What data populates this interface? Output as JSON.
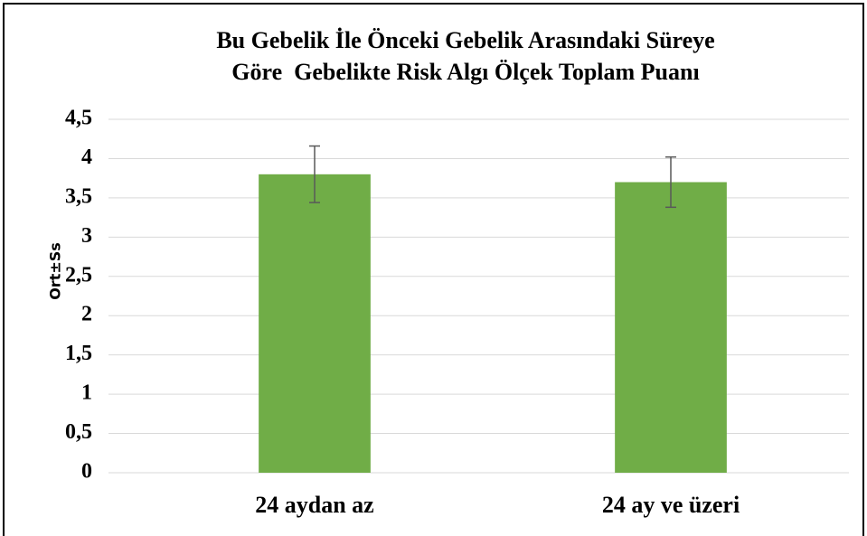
{
  "chart_data": {
    "type": "bar",
    "title": [
      "Bu Gebelik İle Önceki Gebelik Arasındaki Süreye",
      "Göre  Gebelikte Risk Algı Ölçek Toplam Puanı"
    ],
    "y_label": "Ort±Ss",
    "categories": [
      "24 aydan az",
      "24 ay ve üzeri"
    ],
    "values": [
      3.8,
      3.7
    ],
    "errors": [
      0.36,
      0.32
    ],
    "color": "#70ad47",
    "error_color": "#595959",
    "ylim": [
      0,
      4.5
    ],
    "yticks": [
      0,
      {
        "value": 0.5,
        "label": "0,5"
      },
      1,
      {
        "value": 1.5,
        "label": "1,5"
      },
      2,
      {
        "value": 2.5,
        "label": "2,5"
      },
      3,
      {
        "value": 3.5,
        "label": "3,5"
      },
      4,
      {
        "value": 4.5,
        "label": "4,5"
      }
    ],
    "grid": true
  }
}
